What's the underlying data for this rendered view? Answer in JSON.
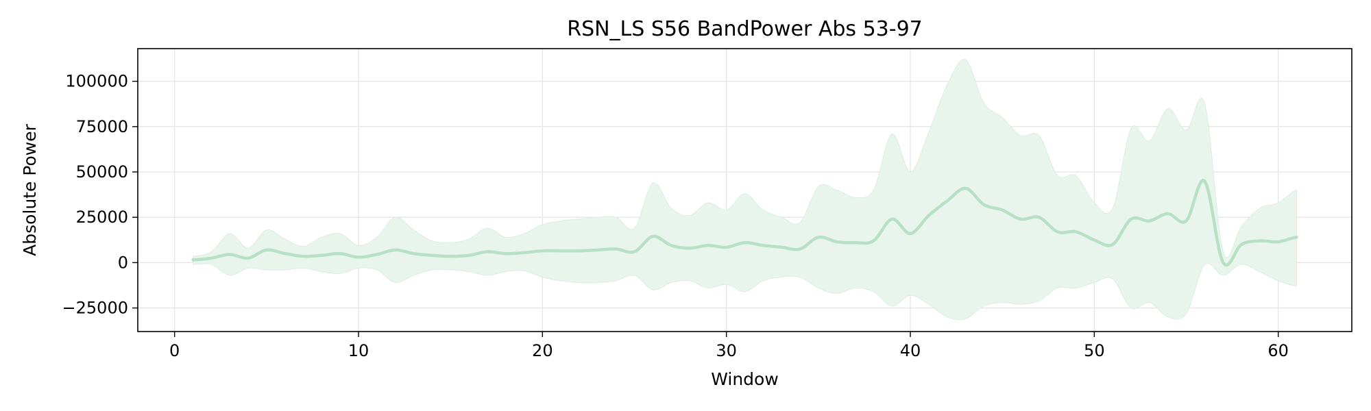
{
  "chart_data": {
    "type": "area",
    "title": "RSN_LS S56 BandPower Abs 53-97",
    "xlabel": "Window",
    "ylabel": "Absolute Power",
    "xlim": [
      -2,
      64
    ],
    "ylim": [
      -38000,
      118000
    ],
    "xticks": [
      0,
      10,
      20,
      30,
      40,
      50,
      60
    ],
    "xtick_labels": [
      "0",
      "10",
      "20",
      "30",
      "40",
      "50",
      "60"
    ],
    "yticks": [
      -25000,
      0,
      25000,
      50000,
      75000,
      100000
    ],
    "ytick_labels": [
      "−25000",
      "0",
      "25000",
      "50000",
      "75000",
      "100000"
    ],
    "grid": true,
    "legend": "none",
    "colors": {
      "line": "#b8e0c6",
      "band": "#e9f5ec",
      "band_edge": "#d9efe0",
      "grid": "#e6e6e6",
      "axes": "#000000"
    },
    "series": [
      {
        "x": [
          1,
          2,
          3,
          4,
          5,
          6,
          7,
          8,
          9,
          10,
          11,
          12,
          13,
          14,
          15,
          16,
          17,
          18,
          19,
          20,
          21,
          22,
          23,
          24,
          25,
          26,
          27,
          28,
          29,
          30,
          31,
          32,
          33,
          34,
          35,
          36,
          37,
          38,
          39,
          40,
          41,
          42,
          43,
          44,
          45,
          46,
          47,
          48,
          49,
          50,
          51,
          52,
          53,
          54,
          55,
          56,
          57,
          58,
          59,
          60,
          61
        ],
        "mean": [
          1500,
          2500,
          4500,
          2500,
          7000,
          5000,
          3500,
          4000,
          5000,
          3000,
          4500,
          7000,
          5000,
          4000,
          3500,
          4000,
          6000,
          5000,
          5500,
          6500,
          6500,
          6500,
          7000,
          7500,
          6000,
          14500,
          9500,
          8000,
          9500,
          8500,
          11000,
          9500,
          8500,
          7500,
          14000,
          11500,
          11000,
          12000,
          24000,
          16000,
          26000,
          34000,
          41000,
          32000,
          29000,
          24000,
          25000,
          17000,
          17000,
          12500,
          10000,
          24000,
          23000,
          27000,
          23000,
          45000,
          0,
          10000,
          12000,
          11500,
          14000
        ],
        "upper": [
          3500,
          6000,
          16000,
          8000,
          18000,
          13000,
          9000,
          14000,
          16000,
          9500,
          14000,
          25000,
          18000,
          12000,
          11000,
          13000,
          19000,
          14000,
          16000,
          21000,
          23000,
          24000,
          25000,
          25000,
          19000,
          44000,
          30000,
          26000,
          33000,
          29000,
          38000,
          29000,
          25000,
          22000,
          42000,
          40000,
          36000,
          40000,
          71000,
          50000,
          72000,
          98000,
          112000,
          88000,
          80000,
          70000,
          70000,
          48000,
          48000,
          33000,
          30000,
          74000,
          67000,
          85000,
          73000,
          88000,
          6000,
          20000,
          30000,
          33000,
          40000
        ],
        "lower": [
          -1000,
          -1000,
          -7000,
          -3000,
          -4000,
          -4000,
          -3000,
          -5000,
          -6000,
          -3000,
          -4000,
          -11000,
          -7000,
          -4000,
          -4000,
          -5000,
          -7000,
          -5000,
          -4500,
          -8000,
          -10000,
          -11000,
          -11000,
          -10000,
          -7000,
          -15000,
          -11000,
          -10000,
          -14000,
          -12000,
          -16000,
          -10000,
          -8000,
          -8000,
          -14000,
          -17000,
          -14000,
          -16000,
          -24000,
          -18000,
          -23000,
          -30000,
          -31000,
          -24000,
          -22000,
          -23000,
          -21000,
          -14000,
          -14000,
          -11000,
          -9000,
          -25000,
          -22000,
          -30000,
          -28000,
          -1000,
          -7000,
          -1000,
          -5000,
          -10000,
          -13000
        ]
      }
    ]
  }
}
